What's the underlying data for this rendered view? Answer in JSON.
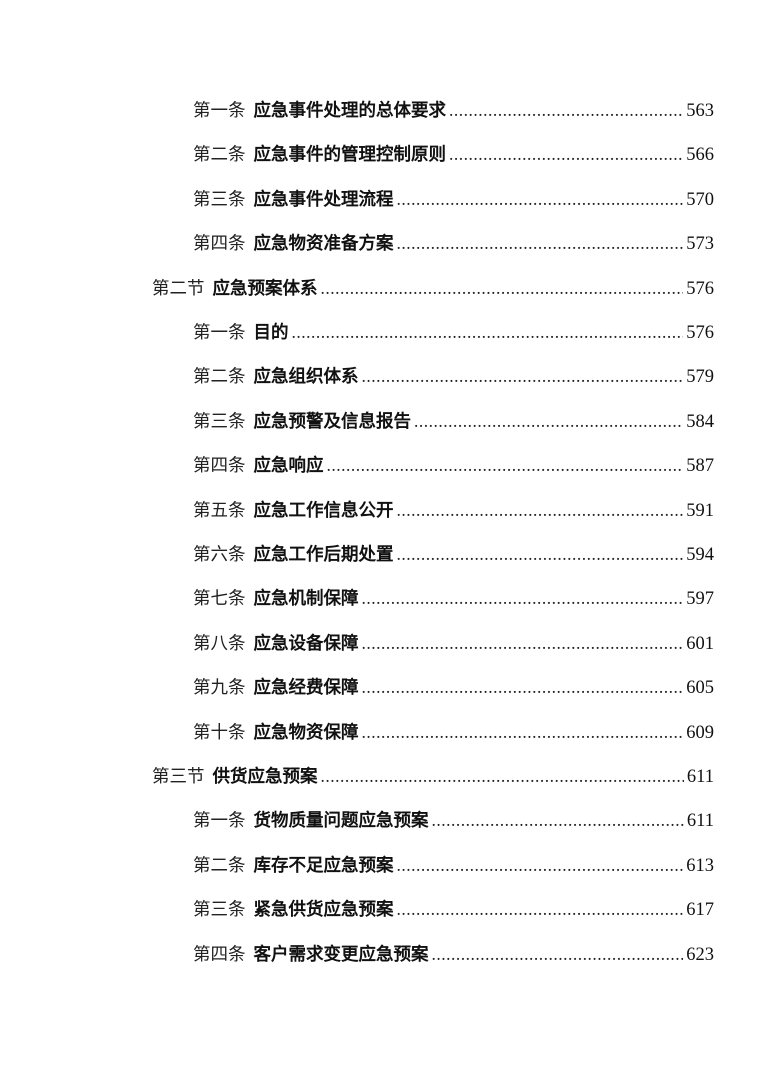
{
  "toc": [
    {
      "level": 2,
      "prefix": "第一条",
      "title": "应急事件处理的总体要求",
      "page": "563"
    },
    {
      "level": 2,
      "prefix": "第二条",
      "title": "应急事件的管理控制原则",
      "page": "566"
    },
    {
      "level": 2,
      "prefix": "第三条",
      "title": "应急事件处理流程",
      "page": "570"
    },
    {
      "level": 2,
      "prefix": "第四条",
      "title": "应急物资准备方案",
      "page": "573"
    },
    {
      "level": 1,
      "prefix": "第二节",
      "title": "应急预案体系",
      "page": "576"
    },
    {
      "level": 2,
      "prefix": "第一条",
      "title": "目的",
      "page": "576"
    },
    {
      "level": 2,
      "prefix": "第二条",
      "title": "应急组织体系",
      "page": "579"
    },
    {
      "level": 2,
      "prefix": "第三条",
      "title": "应急预警及信息报告",
      "page": "584"
    },
    {
      "level": 2,
      "prefix": "第四条",
      "title": "应急响应",
      "page": "587"
    },
    {
      "level": 2,
      "prefix": "第五条",
      "title": "应急工作信息公开",
      "page": "591"
    },
    {
      "level": 2,
      "prefix": "第六条",
      "title": "应急工作后期处置",
      "page": "594"
    },
    {
      "level": 2,
      "prefix": "第七条",
      "title": "应急机制保障",
      "page": "597"
    },
    {
      "level": 2,
      "prefix": "第八条",
      "title": "应急设备保障",
      "page": "601"
    },
    {
      "level": 2,
      "prefix": "第九条",
      "title": "应急经费保障",
      "page": "605"
    },
    {
      "level": 2,
      "prefix": "第十条",
      "title": "应急物资保障",
      "page": "609"
    },
    {
      "level": 1,
      "prefix": "第三节",
      "title": "供货应急预案",
      "page": "611"
    },
    {
      "level": 2,
      "prefix": "第一条",
      "title": "货物质量问题应急预案",
      "page": "611"
    },
    {
      "level": 2,
      "prefix": "第二条",
      "title": "库存不足应急预案",
      "page": "613"
    },
    {
      "level": 2,
      "prefix": "第三条",
      "title": "紧急供货应急预案",
      "page": "617"
    },
    {
      "level": 2,
      "prefix": "第四条",
      "title": "客户需求变更应急预案",
      "page": "623"
    }
  ]
}
